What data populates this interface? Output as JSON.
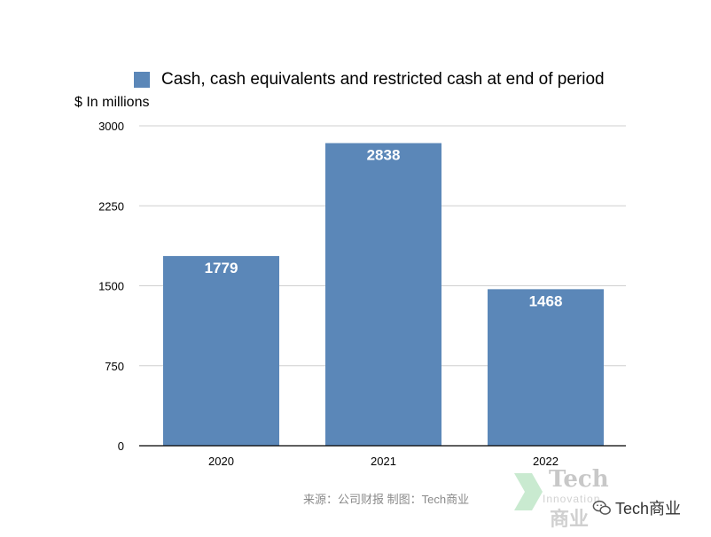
{
  "chart_data": {
    "type": "bar",
    "title": "",
    "ylabel": "$ In millions",
    "xlabel": "",
    "categories": [
      "2020",
      "2021",
      "2022"
    ],
    "series": [
      {
        "name": "Cash, cash equivalents and restricted cash at end of period",
        "values": [
          1779,
          2838,
          1468
        ],
        "color": "#5b87b8"
      }
    ],
    "ylim": [
      0,
      3000
    ],
    "yticks": [
      "0",
      "750",
      "1500",
      "2250",
      "3000"
    ],
    "data_labels": [
      "1779",
      "2838",
      "1468"
    ],
    "grid": true,
    "legend_position": "top"
  },
  "footer": {
    "source": "来源：公司财报 制图：Tech商业",
    "watermark_tech": "Tech",
    "watermark_sub": "Innovation",
    "watermark_cn": "商业",
    "brand_label": "Tech商业",
    "brand_icon": "wechat-icon"
  }
}
